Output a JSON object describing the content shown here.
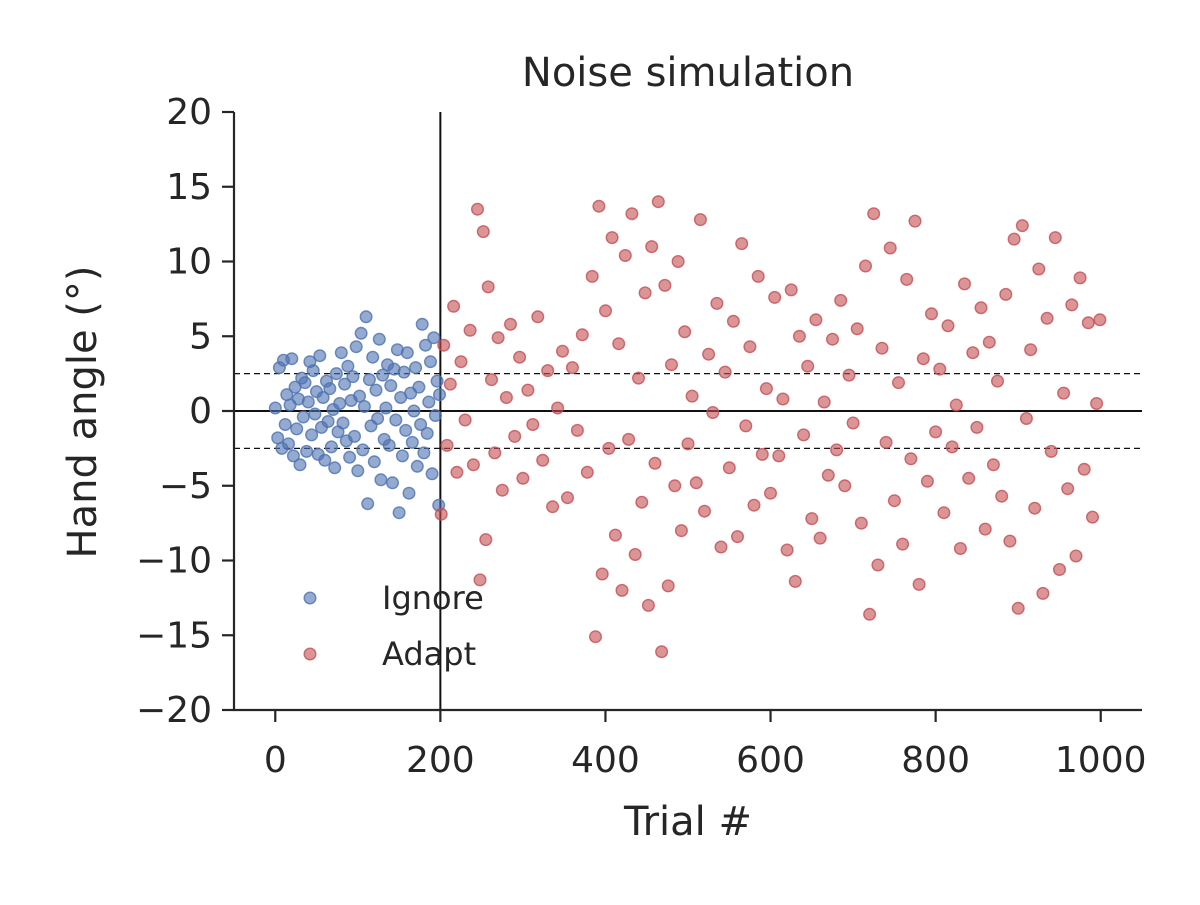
{
  "chart_data": {
    "type": "scatter",
    "title": "Noise simulation",
    "xlabel": "Trial #",
    "ylabel": "Hand angle (°)",
    "xlim": [
      -50,
      1050
    ],
    "ylim": [
      -20,
      20
    ],
    "xticks": [
      0,
      200,
      400,
      600,
      800,
      1000
    ],
    "yticks": [
      -20,
      -15,
      -10,
      -5,
      0,
      5,
      10,
      15,
      20
    ],
    "ytick_labels": [
      "−20",
      "−15",
      "−10",
      "−5",
      "0",
      "5",
      "10",
      "15",
      "20"
    ],
    "xtick_labels": [
      "0",
      "200",
      "400",
      "600",
      "800",
      "1000"
    ],
    "grid": false,
    "legend_position": "lower-left",
    "reference_lines": {
      "vertical_solid_x": 200,
      "horizontal_solid_y": 0,
      "horizontal_dashed_y": [
        2.5,
        -2.5
      ]
    },
    "series": [
      {
        "name": "Ignore",
        "color": "#4c72b0",
        "x_range": [
          0,
          200
        ],
        "sd": 2.5,
        "points": [
          [
            0,
            0.2
          ],
          [
            3,
            -1.8
          ],
          [
            5,
            2.9
          ],
          [
            8,
            -2.5
          ],
          [
            10,
            3.4
          ],
          [
            12,
            -0.9
          ],
          [
            14,
            1.1
          ],
          [
            16,
            -2.2
          ],
          [
            18,
            0.4
          ],
          [
            20,
            3.5
          ],
          [
            22,
            -3.0
          ],
          [
            24,
            1.6
          ],
          [
            26,
            -1.2
          ],
          [
            28,
            0.8
          ],
          [
            30,
            -3.6
          ],
          [
            32,
            2.2
          ],
          [
            34,
            -0.4
          ],
          [
            36,
            1.9
          ],
          [
            38,
            -2.7
          ],
          [
            40,
            0.6
          ],
          [
            42,
            3.3
          ],
          [
            44,
            -1.6
          ],
          [
            46,
            2.7
          ],
          [
            48,
            -0.2
          ],
          [
            50,
            1.3
          ],
          [
            52,
            -2.9
          ],
          [
            54,
            3.7
          ],
          [
            56,
            -1.1
          ],
          [
            58,
            0.9
          ],
          [
            60,
            -3.3
          ],
          [
            62,
            2.0
          ],
          [
            64,
            -0.7
          ],
          [
            66,
            1.5
          ],
          [
            68,
            -2.4
          ],
          [
            70,
            0.1
          ],
          [
            72,
            -3.8
          ],
          [
            74,
            2.5
          ],
          [
            76,
            -1.4
          ],
          [
            78,
            0.5
          ],
          [
            80,
            3.9
          ],
          [
            82,
            -0.8
          ],
          [
            84,
            1.8
          ],
          [
            86,
            -2.0
          ],
          [
            88,
            3.0
          ],
          [
            90,
            -3.1
          ],
          [
            92,
            0.7
          ],
          [
            94,
            2.3
          ],
          [
            96,
            -1.7
          ],
          [
            98,
            4.3
          ],
          [
            100,
            -4.0
          ],
          [
            102,
            1.0
          ],
          [
            104,
            5.2
          ],
          [
            106,
            -2.6
          ],
          [
            108,
            0.3
          ],
          [
            110,
            6.3
          ],
          [
            112,
            -6.2
          ],
          [
            114,
            2.1
          ],
          [
            116,
            -1.0
          ],
          [
            118,
            3.6
          ],
          [
            120,
            -3.4
          ],
          [
            122,
            1.4
          ],
          [
            124,
            -0.5
          ],
          [
            126,
            4.8
          ],
          [
            128,
            -4.6
          ],
          [
            130,
            2.4
          ],
          [
            132,
            -1.9
          ],
          [
            134,
            0.2
          ],
          [
            136,
            3.1
          ],
          [
            138,
            -2.3
          ],
          [
            140,
            1.7
          ],
          [
            142,
            -4.8
          ],
          [
            144,
            2.8
          ],
          [
            146,
            -0.6
          ],
          [
            148,
            4.1
          ],
          [
            150,
            -6.8
          ],
          [
            152,
            0.9
          ],
          [
            154,
            -3.0
          ],
          [
            156,
            2.6
          ],
          [
            158,
            -1.3
          ],
          [
            160,
            3.9
          ],
          [
            162,
            -5.5
          ],
          [
            164,
            1.2
          ],
          [
            166,
            -2.1
          ],
          [
            168,
            0.0
          ],
          [
            170,
            2.9
          ],
          [
            172,
            -3.7
          ],
          [
            174,
            1.6
          ],
          [
            176,
            -0.9
          ],
          [
            178,
            5.8
          ],
          [
            180,
            -2.8
          ],
          [
            182,
            4.4
          ],
          [
            184,
            -1.5
          ],
          [
            186,
            0.6
          ],
          [
            188,
            3.3
          ],
          [
            190,
            -4.2
          ],
          [
            192,
            4.9
          ],
          [
            194,
            -0.3
          ],
          [
            196,
            2.0
          ],
          [
            198,
            -6.3
          ],
          [
            199,
            1.1
          ]
        ]
      },
      {
        "name": "Adapt",
        "color": "#c44e52",
        "x_range": [
          200,
          1000
        ],
        "sd": 7.0,
        "points": [
          [
            201,
            -6.9
          ],
          [
            204,
            4.4
          ],
          [
            208,
            -2.3
          ],
          [
            212,
            1.8
          ],
          [
            216,
            7.0
          ],
          [
            220,
            -4.1
          ],
          [
            225,
            3.3
          ],
          [
            230,
            -0.6
          ],
          [
            236,
            5.4
          ],
          [
            240,
            -3.6
          ],
          [
            245,
            13.5
          ],
          [
            248,
            -11.3
          ],
          [
            252,
            12.0
          ],
          [
            255,
            -8.6
          ],
          [
            258,
            8.3
          ],
          [
            262,
            2.1
          ],
          [
            266,
            -2.8
          ],
          [
            270,
            4.9
          ],
          [
            275,
            -5.3
          ],
          [
            280,
            0.9
          ],
          [
            285,
            5.8
          ],
          [
            290,
            -1.7
          ],
          [
            296,
            3.6
          ],
          [
            300,
            -4.5
          ],
          [
            306,
            1.4
          ],
          [
            312,
            -0.9
          ],
          [
            318,
            6.3
          ],
          [
            324,
            -3.3
          ],
          [
            330,
            2.7
          ],
          [
            336,
            -6.4
          ],
          [
            342,
            0.2
          ],
          [
            348,
            4.0
          ],
          [
            354,
            -5.8
          ],
          [
            360,
            2.9
          ],
          [
            366,
            -1.3
          ],
          [
            372,
            5.1
          ],
          [
            378,
            -4.1
          ],
          [
            384,
            9.0
          ],
          [
            388,
            -15.1
          ],
          [
            392,
            13.7
          ],
          [
            396,
            -10.9
          ],
          [
            400,
            6.7
          ],
          [
            404,
            -2.5
          ],
          [
            408,
            11.6
          ],
          [
            412,
            -8.3
          ],
          [
            416,
            4.5
          ],
          [
            420,
            -12.0
          ],
          [
            424,
            10.4
          ],
          [
            428,
            -1.9
          ],
          [
            432,
            13.2
          ],
          [
            436,
            -9.6
          ],
          [
            440,
            2.2
          ],
          [
            444,
            -6.1
          ],
          [
            448,
            7.9
          ],
          [
            452,
            -13.0
          ],
          [
            456,
            11.0
          ],
          [
            460,
            -3.5
          ],
          [
            464,
            14.0
          ],
          [
            468,
            -16.1
          ],
          [
            472,
            8.4
          ],
          [
            476,
            -11.7
          ],
          [
            480,
            3.1
          ],
          [
            484,
            -5.0
          ],
          [
            488,
            10.0
          ],
          [
            492,
            -8.0
          ],
          [
            496,
            5.3
          ],
          [
            500,
            -2.2
          ],
          [
            505,
            1.0
          ],
          [
            510,
            -4.8
          ],
          [
            515,
            12.8
          ],
          [
            520,
            -6.7
          ],
          [
            525,
            3.8
          ],
          [
            530,
            -0.1
          ],
          [
            535,
            7.2
          ],
          [
            540,
            -9.1
          ],
          [
            545,
            2.6
          ],
          [
            550,
            -3.8
          ],
          [
            555,
            6.0
          ],
          [
            560,
            -8.4
          ],
          [
            565,
            11.2
          ],
          [
            570,
            -1.0
          ],
          [
            575,
            4.3
          ],
          [
            580,
            -6.3
          ],
          [
            585,
            9.0
          ],
          [
            590,
            -2.9
          ],
          [
            595,
            1.5
          ],
          [
            600,
            -5.5
          ],
          [
            605,
            7.6
          ],
          [
            610,
            -3.0
          ],
          [
            615,
            0.8
          ],
          [
            620,
            -9.3
          ],
          [
            625,
            8.1
          ],
          [
            630,
            -11.4
          ],
          [
            635,
            5.0
          ],
          [
            640,
            -1.6
          ],
          [
            645,
            3.0
          ],
          [
            650,
            -7.2
          ],
          [
            655,
            6.1
          ],
          [
            660,
            -8.5
          ],
          [
            665,
            0.6
          ],
          [
            670,
            -4.3
          ],
          [
            675,
            4.8
          ],
          [
            680,
            -2.6
          ],
          [
            685,
            7.4
          ],
          [
            690,
            -5.0
          ],
          [
            695,
            2.4
          ],
          [
            700,
            -0.8
          ],
          [
            705,
            5.5
          ],
          [
            710,
            -7.5
          ],
          [
            715,
            9.7
          ],
          [
            720,
            -13.6
          ],
          [
            725,
            13.2
          ],
          [
            730,
            -10.3
          ],
          [
            735,
            4.2
          ],
          [
            740,
            -2.1
          ],
          [
            745,
            10.9
          ],
          [
            750,
            -6.0
          ],
          [
            755,
            1.9
          ],
          [
            760,
            -8.9
          ],
          [
            765,
            8.8
          ],
          [
            770,
            -3.2
          ],
          [
            775,
            12.7
          ],
          [
            780,
            -11.6
          ],
          [
            785,
            3.5
          ],
          [
            790,
            -4.7
          ],
          [
            795,
            6.5
          ],
          [
            800,
            -1.4
          ],
          [
            805,
            2.8
          ],
          [
            810,
            -6.8
          ],
          [
            815,
            5.7
          ],
          [
            820,
            -2.4
          ],
          [
            825,
            0.4
          ],
          [
            830,
            -9.2
          ],
          [
            835,
            8.5
          ],
          [
            840,
            -4.5
          ],
          [
            845,
            3.9
          ],
          [
            850,
            -1.1
          ],
          [
            855,
            6.9
          ],
          [
            860,
            -7.9
          ],
          [
            865,
            4.6
          ],
          [
            870,
            -3.6
          ],
          [
            875,
            2.0
          ],
          [
            880,
            -5.7
          ],
          [
            885,
            7.8
          ],
          [
            890,
            -8.7
          ],
          [
            895,
            11.5
          ],
          [
            900,
            -13.2
          ],
          [
            905,
            12.4
          ],
          [
            910,
            -0.5
          ],
          [
            915,
            4.1
          ],
          [
            920,
            -6.5
          ],
          [
            925,
            9.5
          ],
          [
            930,
            -12.2
          ],
          [
            935,
            6.2
          ],
          [
            940,
            -2.7
          ],
          [
            945,
            11.6
          ],
          [
            950,
            -10.6
          ],
          [
            955,
            1.2
          ],
          [
            960,
            -5.2
          ],
          [
            965,
            7.1
          ],
          [
            970,
            -9.7
          ],
          [
            975,
            8.9
          ],
          [
            980,
            -3.9
          ],
          [
            985,
            5.9
          ],
          [
            990,
            -7.1
          ],
          [
            995,
            0.5
          ],
          [
            999,
            6.1
          ]
        ]
      }
    ]
  }
}
